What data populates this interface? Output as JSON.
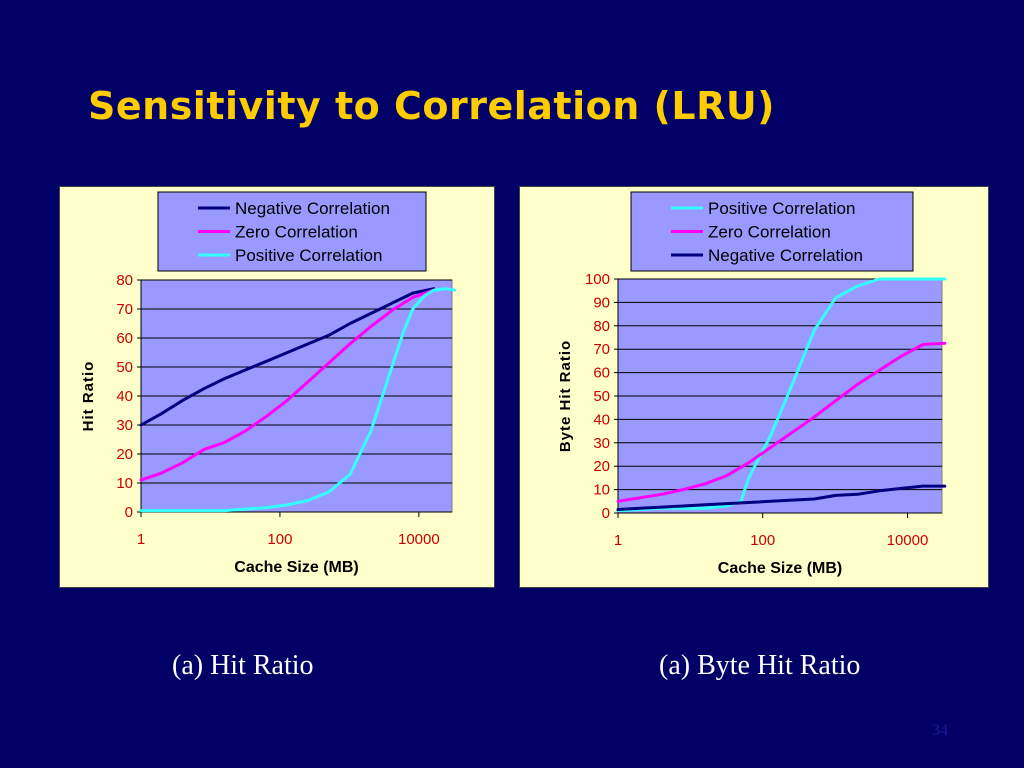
{
  "slide": {
    "title": "Sensitivity to Correlation (LRU)",
    "page_number": "34",
    "captions": [
      "(a) Hit Ratio",
      "(a) Byte Hit Ratio"
    ]
  },
  "colors": {
    "background": "#000066",
    "title": "#ffcc00",
    "panel": "#ffffcc",
    "plot_area": "#9999ff",
    "tick_labels": "#cc0000",
    "negative": "#000080",
    "zero": "#ff00ff",
    "positive": "#33ffff"
  },
  "chart_data": [
    {
      "type": "line",
      "xlabel": "Cache Size (MB)",
      "ylabel": "Hit Ratio",
      "xscale": "log",
      "xlim": [
        1,
        30000
      ],
      "ylim": [
        0,
        80
      ],
      "yticks": [
        0,
        10,
        20,
        30,
        40,
        50,
        60,
        70,
        80
      ],
      "xticks": [
        1,
        100,
        10000
      ],
      "xtick_labels": [
        "1",
        "100",
        "10000"
      ],
      "grid": true,
      "legend_position": "top",
      "series": [
        {
          "name": "Negative Correlation",
          "color": "#000080",
          "x": [
            1,
            2,
            4,
            8,
            16,
            32,
            64,
            128,
            256,
            512,
            1024,
            2048,
            4096,
            8192,
            16384
          ],
          "y": [
            30,
            34,
            38.5,
            42.5,
            46,
            49,
            52,
            55,
            58,
            61,
            65,
            68.5,
            72,
            75.5,
            77
          ]
        },
        {
          "name": "Zero Correlation",
          "color": "#ff00ff",
          "x": [
            1,
            2,
            4,
            8,
            16,
            32,
            64,
            128,
            256,
            512,
            1024,
            2048,
            4096,
            8192,
            16384
          ],
          "y": [
            11,
            13.5,
            17,
            21.5,
            24,
            28,
            33,
            38.5,
            45,
            51.5,
            58,
            64,
            69.5,
            74,
            76.5
          ]
        },
        {
          "name": "Positive Correlation",
          "color": "#33ffff",
          "x": [
            1,
            2,
            4,
            8,
            16,
            32,
            64,
            128,
            256,
            512,
            1024,
            2048,
            4096,
            6000,
            8192,
            12000,
            16384,
            24000,
            32768
          ],
          "y": [
            0.5,
            0.5,
            0.5,
            0.5,
            0.5,
            1,
            1.5,
            2.5,
            4,
            7,
            13,
            28,
            50,
            62,
            70,
            74.5,
            76.5,
            77,
            76.5
          ]
        }
      ]
    },
    {
      "type": "line",
      "xlabel": "Cache Size (MB)",
      "ylabel": "Byte Hit Ratio",
      "xscale": "log",
      "xlim": [
        1,
        30000
      ],
      "ylim": [
        0,
        100
      ],
      "yticks": [
        0,
        10,
        20,
        30,
        40,
        50,
        60,
        70,
        80,
        90,
        100
      ],
      "xticks": [
        1,
        100,
        10000
      ],
      "xtick_labels": [
        "1",
        "100",
        "10000"
      ],
      "grid": true,
      "legend_position": "top",
      "series": [
        {
          "name": "Positive Correlation",
          "color": "#33ffff",
          "x": [
            1,
            2,
            4,
            8,
            16,
            32,
            50,
            64,
            128,
            256,
            512,
            1024,
            2048,
            4096,
            8192,
            16384,
            32768
          ],
          "y": [
            1,
            1.5,
            2,
            2,
            2,
            3,
            5,
            15,
            33,
            55,
            78,
            92,
            97,
            100,
            100,
            100,
            100
          ]
        },
        {
          "name": "Zero Correlation",
          "color": "#ff00ff",
          "x": [
            1,
            2,
            4,
            8,
            16,
            32,
            64,
            128,
            256,
            512,
            1024,
            2048,
            4096,
            8192,
            16384,
            32768
          ],
          "y": [
            5,
            6.5,
            8,
            10,
            12.5,
            16,
            21.5,
            28,
            34.5,
            41,
            48,
            55,
            61,
            67,
            72,
            72.5
          ]
        },
        {
          "name": "Negative Correlation",
          "color": "#000080",
          "x": [
            1,
            2,
            4,
            8,
            16,
            32,
            64,
            128,
            256,
            512,
            1024,
            2048,
            4096,
            8192,
            16384,
            32768
          ],
          "y": [
            1.5,
            2,
            2.5,
            3,
            3.5,
            4,
            4.5,
            5,
            5.5,
            6,
            7.5,
            8,
            9.5,
            10.5,
            11.5,
            11.5
          ]
        }
      ]
    }
  ]
}
